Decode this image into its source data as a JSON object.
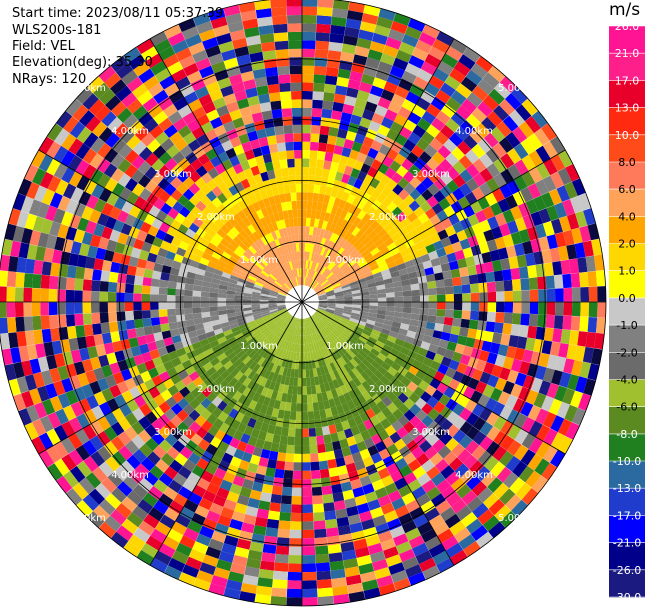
{
  "info": {
    "start_time": "Start time: 2023/08/11 05:37:39",
    "instrument": "WLS200s-181",
    "field": "Field: VEL",
    "elevation": "Elevation(deg): 35.30",
    "nrays": "NRays: 120"
  },
  "colorbar": {
    "unit": "m/s",
    "ticks": [
      "26.0",
      "21.0",
      "17.0",
      "13.0",
      "10.0",
      "8.0",
      "6.0",
      "4.0",
      "2.0",
      "1.0",
      "0.0",
      "-1.0",
      "-2.0",
      "-4.0",
      "-6.0",
      "-8.0",
      "-10.0",
      "-13.0",
      "-17.0",
      "-21.0",
      "-26.0",
      "-30.0"
    ],
    "colors": [
      "#ff1493",
      "#ff1f8a",
      "#e8002a",
      "#ff2a10",
      "#ff4a1a",
      "#ff7a5a",
      "#ffa35a",
      "#ffa500",
      "#ffd700",
      "#ffff00",
      "#c8c8c8",
      "#808080",
      "#6b6b6b",
      "#a0c030",
      "#5a8a20",
      "#208020",
      "#2a6aa0",
      "#1f3ccc",
      "#0000ff",
      "#00008b",
      "#1a1a80",
      "#0a0a40"
    ]
  },
  "chart_data": {
    "type": "ppi",
    "field": "VEL",
    "unit": "m/s",
    "rings_km": [
      1.0,
      2.0,
      3.0,
      4.0,
      5.0
    ],
    "ring_labels": [
      "1.00km",
      "2.00km",
      "3.00km",
      "4.00km",
      "5.00km"
    ],
    "max_range_km": 5.0,
    "vmin": -30.0,
    "vmax": 26.0
  }
}
